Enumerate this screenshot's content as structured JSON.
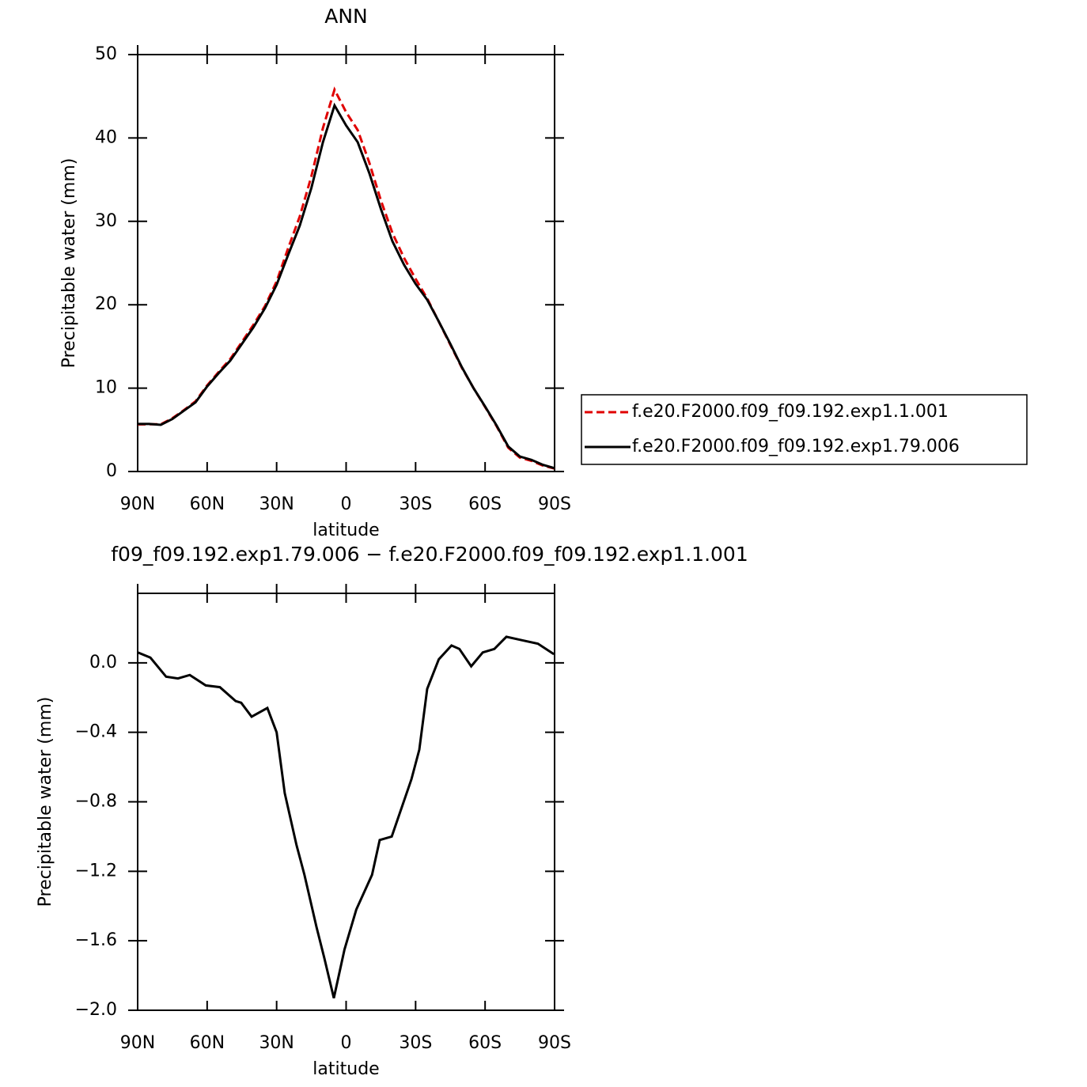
{
  "chart_data": [
    {
      "type": "line",
      "title": "ANN",
      "xlabel": "latitude",
      "ylabel": "Precipitable water (mm)",
      "x": [
        90,
        85,
        80,
        75,
        70,
        65,
        60,
        55,
        50,
        45,
        40,
        35,
        30,
        25,
        20,
        15,
        10,
        5,
        0,
        -5,
        -10,
        -15,
        -20,
        -25,
        -30,
        -35,
        -40,
        -45,
        -50,
        -55,
        -60,
        -65,
        -70,
        -75,
        -80,
        -85,
        -90
      ],
      "series": [
        {
          "name": "f.e20.F2000.f09_f09.192.exp1.1.001",
          "color": "#e00000",
          "line_style": "dashed",
          "values": [
            5.64,
            5.67,
            5.67,
            6.39,
            7.37,
            8.42,
            10.33,
            11.95,
            13.5,
            15.54,
            17.6,
            19.86,
            22.8,
            26.8,
            30.6,
            35.4,
            41.2,
            45.8,
            43.1,
            40.95,
            37.05,
            32.52,
            28.6,
            25.62,
            23.1,
            20.75,
            17.98,
            15.2,
            12.43,
            10.01,
            7.74,
            5.42,
            2.85,
            1.67,
            1.28,
            0.7,
            0.35
          ]
        },
        {
          "name": "f.e20.F2000.f09_f09.192.exp1.79.006",
          "color": "#000000",
          "line_style": "solid",
          "values": [
            5.7,
            5.7,
            5.6,
            6.3,
            7.3,
            8.3,
            10.2,
            11.8,
            13.3,
            15.3,
            17.3,
            19.6,
            22.4,
            26.0,
            29.5,
            34.0,
            39.5,
            43.9,
            41.5,
            39.5,
            35.8,
            31.5,
            27.6,
            24.8,
            22.5,
            20.6,
            18.0,
            15.3,
            12.5,
            10.0,
            7.8,
            5.5,
            3.0,
            1.8,
            1.4,
            0.8,
            0.4
          ]
        }
      ],
      "xlim": [
        90,
        -90
      ],
      "xticks": [
        {
          "value": 90,
          "label": "90N"
        },
        {
          "value": 60,
          "label": "60N"
        },
        {
          "value": 30,
          "label": "30N"
        },
        0,
        {
          "value": -30,
          "label": "30S"
        },
        {
          "value": -60,
          "label": "60S"
        },
        {
          "value": -90,
          "label": "90S"
        }
      ],
      "ylim": [
        0,
        50
      ],
      "yticks": [
        0,
        10,
        20,
        30,
        40,
        50
      ],
      "legend": "right"
    },
    {
      "type": "line",
      "title": "f09_f09.192.exp1.79.006 − f.e20.F2000.f09_f09.192.exp1.1.001",
      "xlabel": "latitude",
      "ylabel": "Precipitable water (mm)",
      "x": [
        90,
        84.5,
        77.7,
        72.6,
        67.5,
        60.6,
        54.5,
        47.7,
        45.3,
        40.8,
        34,
        30,
        26.5,
        21.4,
        18,
        12.8,
        9.4,
        5.3,
        0.7,
        -4.4,
        -11.2,
        -14.5,
        -19.7,
        -28.2,
        -31.6,
        -35,
        -40,
        -45.5,
        -48.9,
        -54,
        -59,
        -64,
        -69.2,
        -76,
        -82.8,
        -89.7
      ],
      "series": [
        {
          "color": "#000000",
          "line_style": "solid",
          "values": [
            0.06,
            0.03,
            -0.08,
            -0.09,
            -0.07,
            -0.13,
            -0.14,
            -0.22,
            -0.23,
            -0.31,
            -0.26,
            -0.4,
            -0.75,
            -1.05,
            -1.22,
            -1.52,
            -1.7,
            -1.93,
            -1.65,
            -1.42,
            -1.22,
            -1.02,
            -1.0,
            -0.67,
            -0.5,
            -0.15,
            0.02,
            0.1,
            0.08,
            -0.02,
            0.06,
            0.08,
            0.15,
            0.13,
            0.11,
            0.05
          ]
        }
      ],
      "xlim": [
        90,
        -90
      ],
      "xticks": [
        {
          "value": 90,
          "label": "90N"
        },
        {
          "value": 60,
          "label": "60N"
        },
        {
          "value": 30,
          "label": "30N"
        },
        0,
        {
          "value": -30,
          "label": "30S"
        },
        {
          "value": -60,
          "label": "60S"
        },
        {
          "value": -90,
          "label": "90S"
        }
      ],
      "ylim": [
        -2.0,
        0.4
      ],
      "yticks": [
        {
          "value": 0,
          "label": "0.0"
        },
        {
          "value": -0.4,
          "label": "−0.4"
        },
        {
          "value": -0.8,
          "label": "−0.8"
        },
        {
          "value": -1.2,
          "label": "−1.2"
        },
        {
          "value": -1.6,
          "label": "−1.6"
        },
        {
          "value": -2.0,
          "label": "−2.0"
        }
      ]
    }
  ]
}
